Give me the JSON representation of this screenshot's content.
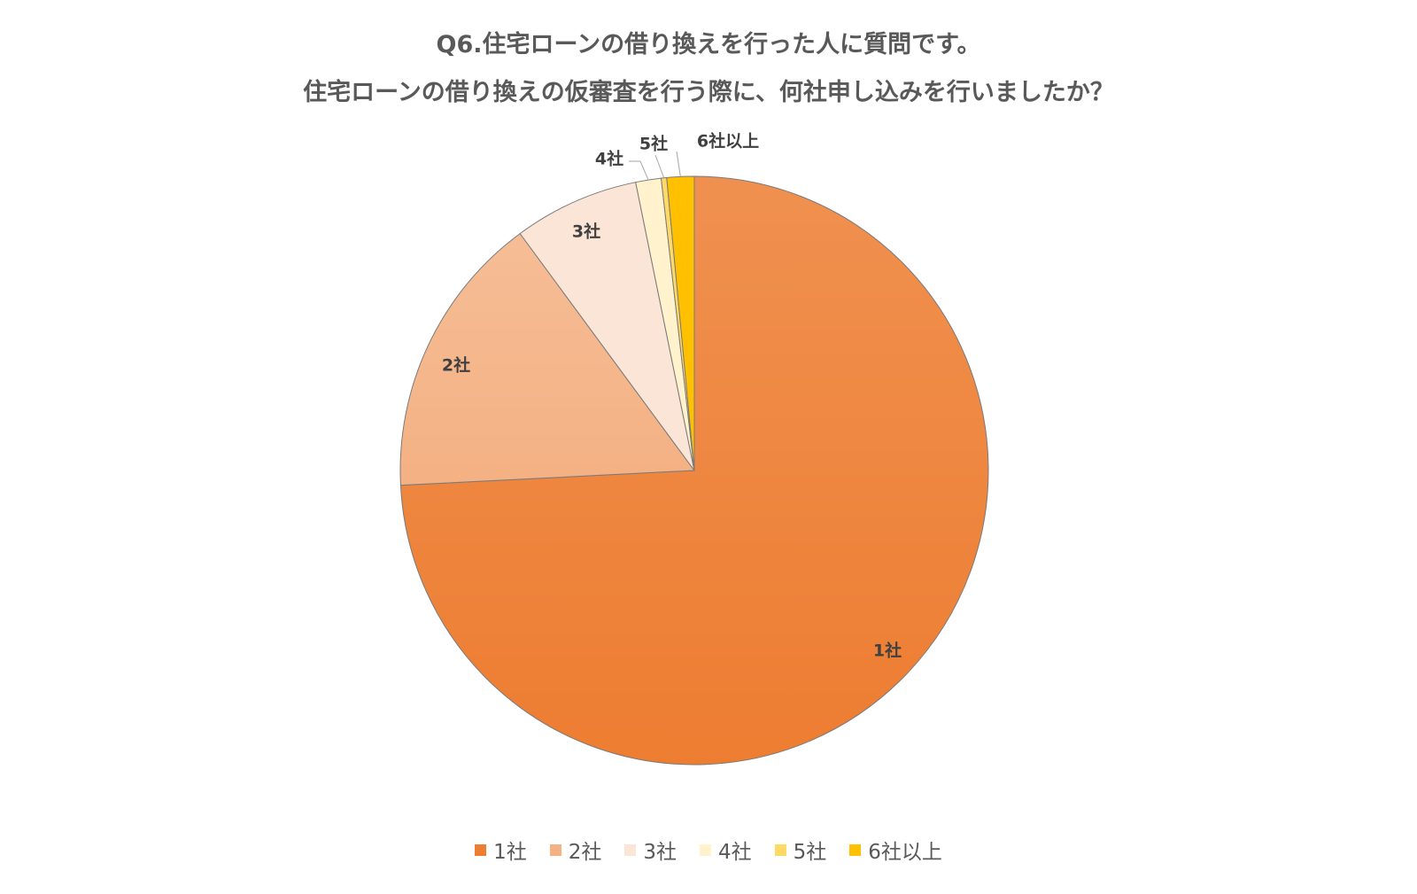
{
  "chart_data": {
    "type": "pie",
    "title": [
      "Q6.住宅ローンの借り換えを行った人に質問です。",
      "住宅ローンの借り換えの仮審査を行う際に、何社申し込みを行いましたか？"
    ],
    "categories": [
      "1社",
      "2社",
      "3社",
      "4社",
      "5社",
      "6社以上"
    ],
    "values": [
      74.2,
      15.7,
      6.9,
      1.4,
      0.3,
      1.5
    ],
    "unit": "%",
    "colors": [
      "#ED7D31",
      "#F4B183",
      "#FBE5D6",
      "#FFF2CC",
      "#FFD966",
      "#FFC000"
    ],
    "start_angle": "12 o'clock, clockwise",
    "legend": "bottom"
  }
}
